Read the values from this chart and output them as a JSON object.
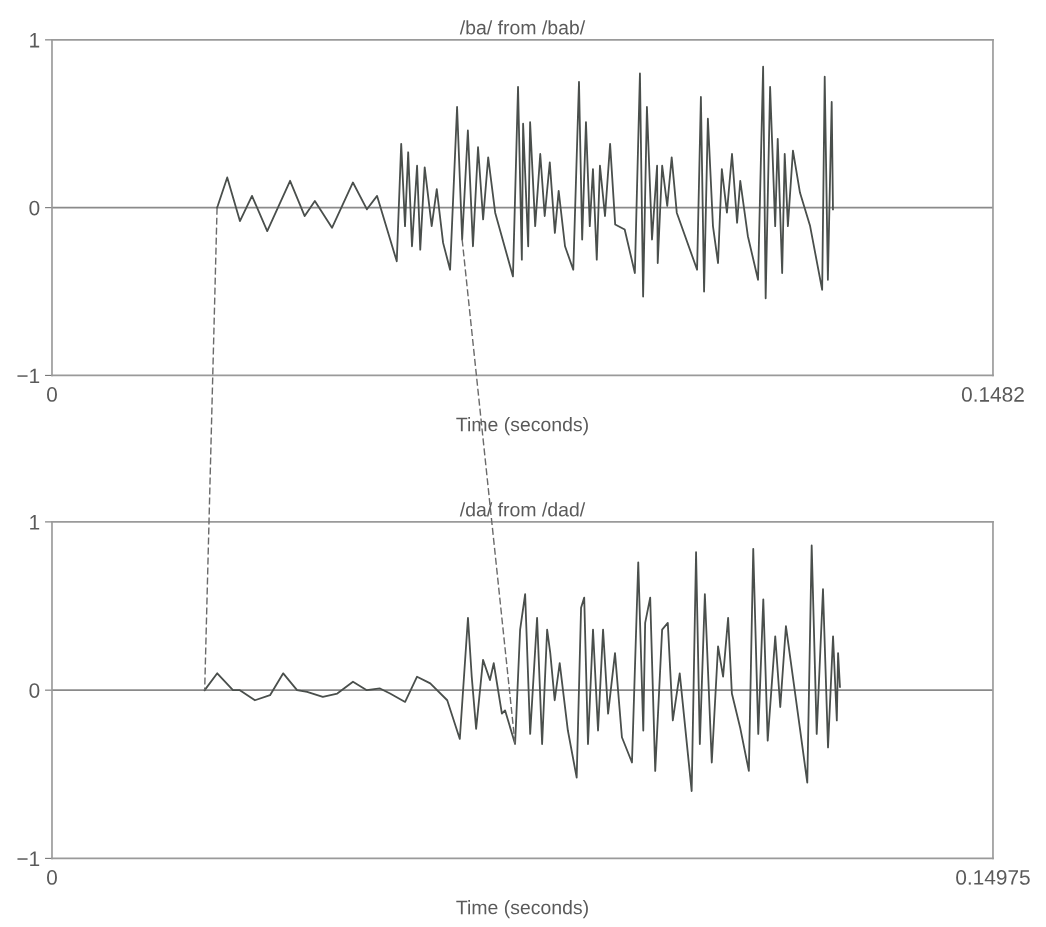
{
  "chart_data": [
    {
      "type": "line",
      "title": "/ba/ from /bab/",
      "xlabel": "Time (seconds)",
      "xlim": [
        0,
        0.1482
      ],
      "xticks": [
        0,
        0.1482
      ],
      "ylim": [
        -1,
        1
      ],
      "yticks": [
        -1,
        0,
        1
      ],
      "grid": false,
      "legend": false,
      "ref_lines": [
        {
          "axis": "y",
          "value": 0,
          "color": "#8a8a8a"
        }
      ],
      "series": [
        {
          "color": "#4a4f4c",
          "x": [
            0.026,
            0.0261,
            0.0276,
            0.0296,
            0.0315,
            0.0339,
            0.0375,
            0.0398,
            0.0414,
            0.0441,
            0.0474,
            0.0496,
            0.0512,
            0.0543,
            0.055,
            0.0556,
            0.0561,
            0.0567,
            0.0575,
            0.058,
            0.0587,
            0.0598,
            0.0606,
            0.0616,
            0.0627,
            0.0638,
            0.0646,
            0.0655,
            0.0663,
            0.0671,
            0.0679,
            0.0687,
            0.0698,
            0.0726,
            0.0734,
            0.074,
            0.0742,
            0.075,
            0.0753,
            0.0761,
            0.0769,
            0.0776,
            0.0784,
            0.0792,
            0.0798,
            0.0808,
            0.0821,
            0.083,
            0.0835,
            0.0841,
            0.0847,
            0.0852,
            0.0858,
            0.0863,
            0.0871,
            0.0879,
            0.0887,
            0.0902,
            0.0918,
            0.0926,
            0.0931,
            0.0937,
            0.0945,
            0.0953,
            0.0954,
            0.0961,
            0.0969,
            0.0976,
            0.0984,
            0.1016,
            0.1022,
            0.1027,
            0.1033,
            0.1041,
            0.1049,
            0.1055,
            0.1063,
            0.1071,
            0.1079,
            0.1084,
            0.1096,
            0.1112,
            0.112,
            0.1124,
            0.1131,
            0.1139,
            0.1143,
            0.115,
            0.1154,
            0.1159,
            0.1167,
            0.1178,
            0.1194,
            0.1213,
            0.1217,
            0.1222,
            0.1228,
            0.123
          ],
          "values": [
            0.0,
            0.01,
            0.18,
            -0.08,
            0.07,
            -0.14,
            0.16,
            -0.05,
            0.04,
            -0.12,
            0.15,
            -0.01,
            0.07,
            -0.32,
            0.38,
            -0.11,
            0.33,
            -0.23,
            0.25,
            -0.25,
            0.24,
            -0.11,
            0.11,
            -0.21,
            -0.37,
            0.6,
            -0.19,
            0.46,
            -0.23,
            0.36,
            -0.07,
            0.3,
            -0.03,
            -0.41,
            0.72,
            -0.31,
            0.5,
            -0.23,
            0.51,
            -0.11,
            0.32,
            -0.05,
            0.27,
            -0.15,
            0.1,
            -0.23,
            -0.37,
            0.75,
            -0.19,
            0.51,
            -0.11,
            0.23,
            -0.31,
            0.25,
            -0.05,
            0.38,
            -0.1,
            -0.13,
            -0.39,
            0.8,
            -0.53,
            0.6,
            -0.19,
            0.25,
            -0.33,
            0.25,
            0.01,
            0.3,
            -0.03,
            -0.37,
            0.66,
            -0.5,
            0.53,
            -0.11,
            -0.33,
            0.23,
            -0.03,
            0.32,
            -0.09,
            0.16,
            -0.17,
            -0.43,
            0.84,
            -0.54,
            0.72,
            -0.11,
            0.41,
            -0.39,
            0.32,
            -0.11,
            0.34,
            0.09,
            -0.11,
            -0.49,
            0.78,
            -0.43,
            0.63,
            -0.01
          ]
        }
      ]
    },
    {
      "type": "line",
      "title": "/da/ from /dad/",
      "xlabel": "Time (seconds)",
      "xlim": [
        0,
        0.14975
      ],
      "xticks": [
        0,
        0.14975
      ],
      "ylim": [
        -1,
        1
      ],
      "yticks": [
        -1,
        0,
        1
      ],
      "grid": false,
      "legend": false,
      "ref_lines": [
        {
          "axis": "y",
          "value": 0,
          "color": "#8a8a8a"
        }
      ],
      "series": [
        {
          "color": "#4a4f4c",
          "x": [
            0.0243,
            0.0263,
            0.0288,
            0.0299,
            0.0323,
            0.0347,
            0.0368,
            0.039,
            0.0406,
            0.0431,
            0.0454,
            0.0479,
            0.0501,
            0.0522,
            0.0538,
            0.0562,
            0.0581,
            0.0602,
            0.0629,
            0.0649,
            0.0662,
            0.0668,
            0.0675,
            0.0686,
            0.0697,
            0.0703,
            0.0716,
            0.0721,
            0.0737,
            0.0745,
            0.0753,
            0.0761,
            0.0772,
            0.078,
            0.0788,
            0.0793,
            0.08,
            0.0808,
            0.0821,
            0.0835,
            0.0842,
            0.0847,
            0.0853,
            0.0861,
            0.0869,
            0.0877,
            0.0885,
            0.0896,
            0.0907,
            0.0923,
            0.0933,
            0.0941,
            0.0944,
            0.0952,
            0.096,
            0.0971,
            0.098,
            0.0988,
            0.0999,
            0.1018,
            0.1025,
            0.1031,
            0.1039,
            0.105,
            0.106,
            0.1068,
            0.1076,
            0.1082,
            0.1095,
            0.1109,
            0.1116,
            0.1124,
            0.1132,
            0.1139,
            0.1151,
            0.1159,
            0.1168,
            0.1179,
            0.119,
            0.1202,
            0.1209,
            0.1217,
            0.1227,
            0.1235,
            0.1243,
            0.1249,
            0.1251,
            0.1254
          ],
          "values": [
            0.0,
            0.1,
            0.0,
            0.0,
            -0.06,
            -0.03,
            0.1,
            0.0,
            -0.01,
            -0.04,
            -0.02,
            0.05,
            0.0,
            0.01,
            -0.02,
            -0.07,
            0.08,
            0.04,
            -0.06,
            -0.29,
            0.43,
            0.08,
            -0.23,
            0.18,
            0.06,
            0.16,
            -0.14,
            -0.12,
            -0.32,
            0.36,
            0.57,
            -0.26,
            0.43,
            -0.32,
            0.36,
            0.22,
            -0.06,
            0.16,
            -0.24,
            -0.52,
            0.49,
            0.55,
            -0.32,
            0.36,
            -0.24,
            0.36,
            -0.14,
            0.22,
            -0.28,
            -0.43,
            0.76,
            -0.24,
            0.4,
            0.55,
            -0.48,
            0.36,
            0.4,
            -0.18,
            0.1,
            -0.6,
            0.82,
            -0.32,
            0.57,
            -0.43,
            0.26,
            0.08,
            0.43,
            -0.02,
            -0.22,
            -0.48,
            0.84,
            -0.26,
            0.54,
            -0.3,
            0.32,
            -0.1,
            0.38,
            0.08,
            -0.22,
            -0.55,
            0.86,
            -0.26,
            0.6,
            -0.34,
            0.32,
            -0.18,
            0.22,
            0.02
          ]
        }
      ]
    }
  ]
}
